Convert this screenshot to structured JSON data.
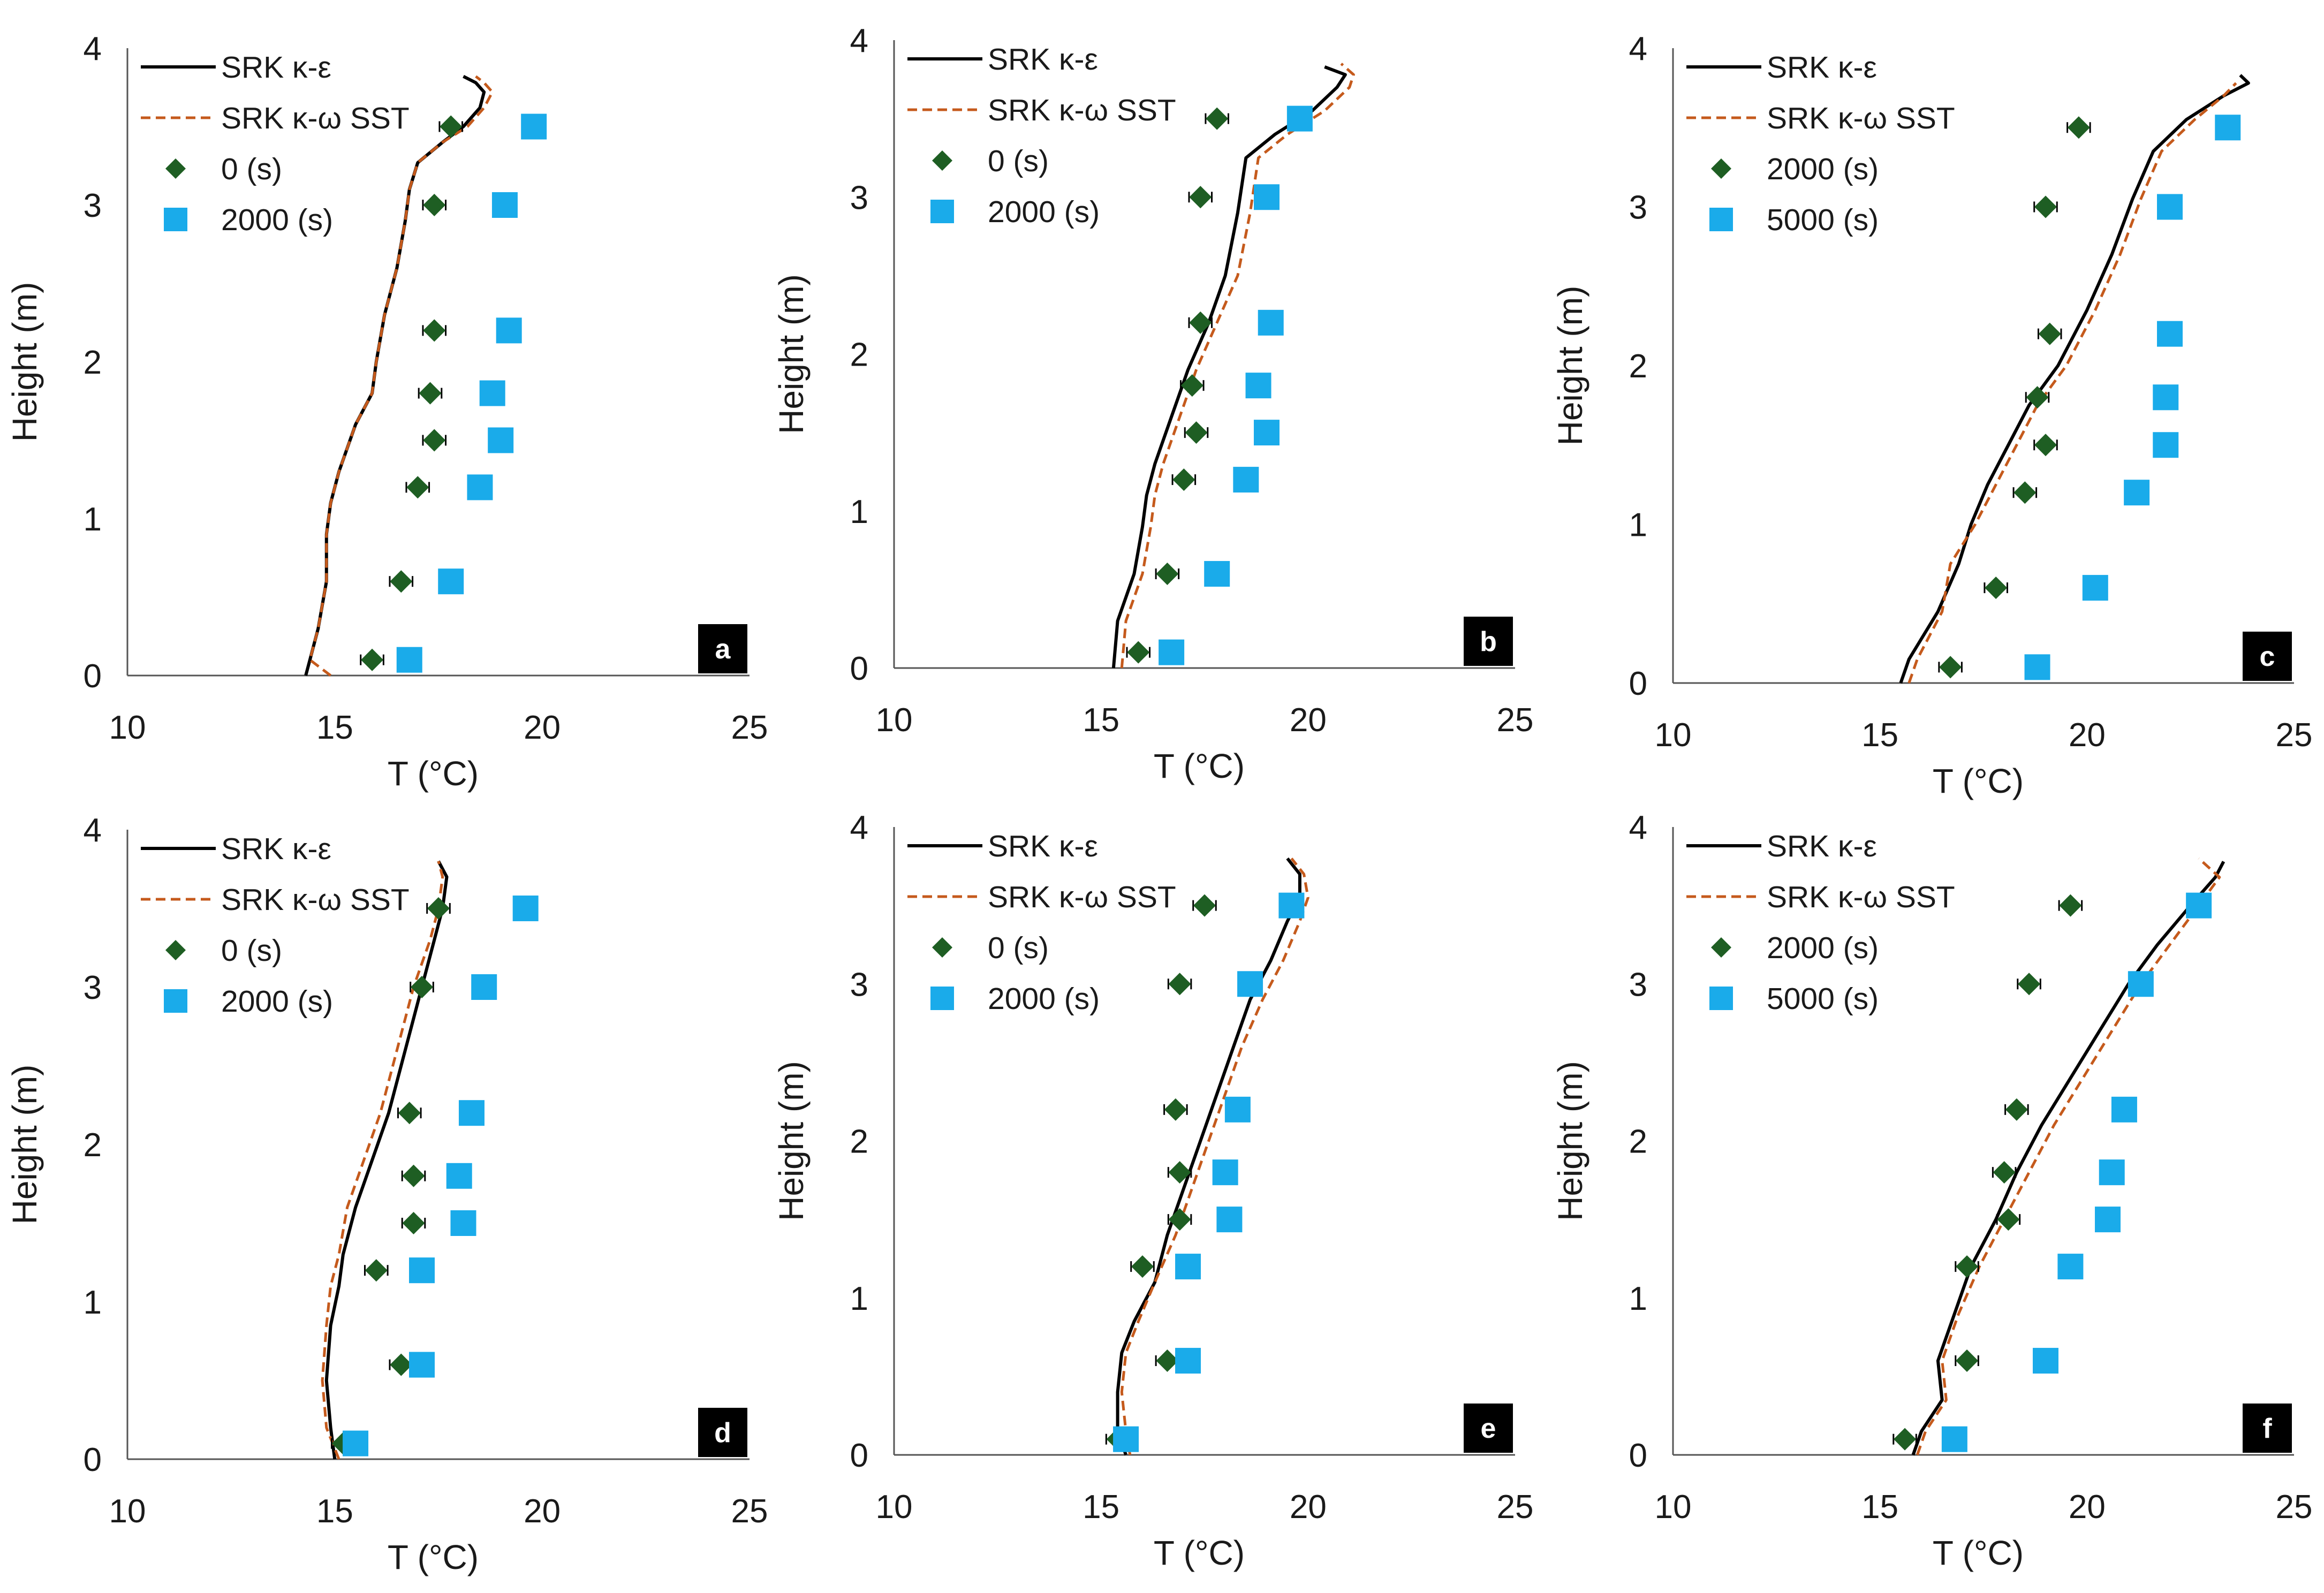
{
  "colors": {
    "ke_line": "#000000",
    "kw_line": "#c55a1c",
    "diamond": "#1e5e23",
    "square": "#1aabea",
    "axis": "#555555",
    "label_box": "#000000",
    "label_text": "#ffffff"
  },
  "chart_data": [
    {
      "type": "line",
      "panel_label": "a",
      "xlabel": "T (°C)",
      "ylabel": "Height (m)",
      "xlim": [
        10,
        25
      ],
      "ylim": [
        0,
        4
      ],
      "xticks": [
        "10",
        "15",
        "20",
        "25"
      ],
      "yticks": [
        "0",
        "1",
        "2",
        "3",
        "4"
      ],
      "legend": [
        "SRK κ-ε",
        "SRK κ-ω SST",
        "0 (s)",
        "2000 (s)"
      ],
      "series": [
        {
          "name": "SRK κ-ε",
          "kind": "line",
          "style": "solid",
          "x": [
            14.3,
            14.4,
            14.6,
            14.8,
            14.8,
            14.9,
            15.1,
            15.5,
            15.9,
            16.0,
            16.2,
            16.5,
            16.7,
            16.8,
            17.0,
            17.6,
            18.1,
            18.5,
            18.6,
            18.4,
            18.1
          ],
          "y": [
            0.0,
            0.1,
            0.3,
            0.6,
            0.9,
            1.1,
            1.3,
            1.6,
            1.8,
            2.0,
            2.3,
            2.6,
            2.9,
            3.1,
            3.27,
            3.4,
            3.5,
            3.62,
            3.72,
            3.78,
            3.82
          ]
        },
        {
          "name": "SRK κ-ω SST",
          "kind": "line",
          "style": "dashed",
          "x": [
            14.9,
            14.4,
            14.6,
            14.8,
            14.8,
            14.9,
            15.1,
            15.5,
            15.9,
            16.0,
            16.2,
            16.5,
            16.7,
            16.8,
            17.0,
            17.6,
            18.2,
            18.6,
            18.8,
            18.6,
            18.4
          ],
          "y": [
            0.0,
            0.1,
            0.3,
            0.6,
            0.9,
            1.1,
            1.3,
            1.6,
            1.8,
            2.0,
            2.3,
            2.6,
            2.9,
            3.1,
            3.27,
            3.4,
            3.5,
            3.62,
            3.72,
            3.78,
            3.82
          ]
        },
        {
          "name": "0 (s)",
          "kind": "diamond",
          "x": [
            15.9,
            16.6,
            17.0,
            17.4,
            17.3,
            17.4,
            17.4,
            17.8
          ],
          "y": [
            0.1,
            0.6,
            1.2,
            1.5,
            1.8,
            2.2,
            3.0,
            3.5
          ]
        },
        {
          "name": "2000 (s)",
          "kind": "square",
          "x": [
            16.8,
            17.8,
            18.5,
            19.0,
            18.8,
            19.2,
            19.1,
            19.8
          ],
          "y": [
            0.1,
            0.6,
            1.2,
            1.5,
            1.8,
            2.2,
            3.0,
            3.5
          ]
        }
      ]
    },
    {
      "type": "line",
      "panel_label": "b",
      "xlabel": "T (°C)",
      "ylabel": "Height (m)",
      "xlim": [
        10,
        25
      ],
      "ylim": [
        0,
        4
      ],
      "xticks": [
        "10",
        "15",
        "20",
        "25"
      ],
      "yticks": [
        "0",
        "1",
        "2",
        "3",
        "4"
      ],
      "legend": [
        "SRK κ-ε",
        "SRK κ-ω SST",
        "0 (s)",
        "2000 (s)"
      ],
      "series": [
        {
          "name": "SRK κ-ε",
          "kind": "line",
          "style": "solid",
          "x": [
            15.3,
            15.4,
            15.8,
            16.0,
            16.1,
            16.3,
            16.7,
            17.1,
            17.6,
            18.0,
            18.3,
            18.5,
            19.2,
            20.1,
            20.7,
            20.9,
            20.4
          ],
          "y": [
            0.0,
            0.3,
            0.6,
            0.9,
            1.1,
            1.3,
            1.6,
            1.9,
            2.2,
            2.5,
            2.9,
            3.25,
            3.4,
            3.55,
            3.7,
            3.78,
            3.83
          ]
        },
        {
          "name": "SRK κ-ω SST",
          "kind": "line",
          "style": "dashed",
          "x": [
            15.5,
            15.6,
            16.0,
            16.2,
            16.3,
            16.5,
            16.9,
            17.3,
            17.8,
            18.3,
            18.6,
            18.8,
            19.5,
            20.4,
            21.0,
            21.1,
            20.8
          ],
          "y": [
            0.0,
            0.3,
            0.6,
            0.9,
            1.1,
            1.3,
            1.6,
            1.9,
            2.2,
            2.5,
            2.9,
            3.25,
            3.4,
            3.55,
            3.7,
            3.78,
            3.85
          ]
        },
        {
          "name": "0 (s)",
          "kind": "diamond",
          "x": [
            15.9,
            16.6,
            17.0,
            17.3,
            17.2,
            17.4,
            17.4,
            17.8
          ],
          "y": [
            0.1,
            0.6,
            1.2,
            1.5,
            1.8,
            2.2,
            3.0,
            3.5
          ]
        },
        {
          "name": "2000 (s)",
          "kind": "square",
          "x": [
            16.7,
            17.8,
            18.5,
            19.0,
            18.8,
            19.1,
            19.0,
            19.8
          ],
          "y": [
            0.1,
            0.6,
            1.2,
            1.5,
            1.8,
            2.2,
            3.0,
            3.5
          ]
        }
      ]
    },
    {
      "type": "line",
      "panel_label": "c",
      "xlabel": "T (°C)",
      "ylabel": "Height (m)",
      "xlim": [
        10,
        25
      ],
      "ylim": [
        0,
        4
      ],
      "xticks": [
        "10",
        "15",
        "20",
        "25"
      ],
      "yticks": [
        "0",
        "1",
        "2",
        "3",
        "4"
      ],
      "legend": [
        "SRK κ-ε",
        "SRK κ-ω SST",
        "2000 (s)",
        "5000 (s)"
      ],
      "series": [
        {
          "name": "SRK κ-ε",
          "kind": "line",
          "style": "solid",
          "x": [
            15.5,
            15.7,
            16.4,
            16.9,
            17.2,
            17.6,
            18.1,
            18.6,
            19.3,
            20.0,
            20.6,
            21.1,
            21.6,
            22.4,
            23.3,
            23.9,
            23.7
          ],
          "y": [
            0.0,
            0.15,
            0.45,
            0.75,
            1.0,
            1.25,
            1.5,
            1.75,
            2.0,
            2.35,
            2.7,
            3.05,
            3.35,
            3.55,
            3.7,
            3.78,
            3.83
          ]
        },
        {
          "name": "SRK κ-ω SST",
          "kind": "line",
          "style": "dashed",
          "x": [
            15.7,
            15.9,
            16.5,
            16.7,
            17.3,
            17.8,
            18.3,
            18.8,
            19.5,
            20.2,
            20.8,
            21.3,
            21.8,
            22.6,
            23.3,
            23.6
          ],
          "y": [
            0.0,
            0.15,
            0.45,
            0.75,
            1.0,
            1.25,
            1.5,
            1.75,
            2.0,
            2.35,
            2.7,
            3.05,
            3.35,
            3.55,
            3.7,
            3.78
          ]
        },
        {
          "name": "2000 (s)",
          "kind": "diamond",
          "x": [
            16.7,
            17.8,
            18.5,
            19.0,
            18.8,
            19.1,
            19.0,
            19.8
          ],
          "y": [
            0.1,
            0.6,
            1.2,
            1.5,
            1.8,
            2.2,
            3.0,
            3.5
          ]
        },
        {
          "name": "5000 (s)",
          "kind": "square",
          "x": [
            18.8,
            20.2,
            21.2,
            21.9,
            21.9,
            22.0,
            22.0,
            23.4
          ],
          "y": [
            0.1,
            0.6,
            1.2,
            1.5,
            1.8,
            2.2,
            3.0,
            3.5
          ]
        }
      ]
    },
    {
      "type": "line",
      "panel_label": "d",
      "xlabel": "T (°C)",
      "ylabel": "Height (m)",
      "xlim": [
        10,
        25
      ],
      "ylim": [
        0,
        4
      ],
      "xticks": [
        "10",
        "15",
        "20",
        "25"
      ],
      "yticks": [
        "0",
        "1",
        "2",
        "3",
        "4"
      ],
      "legend": [
        "SRK κ-ε",
        "SRK κ-ω SST",
        "0 (s)",
        "2000 (s)"
      ],
      "series": [
        {
          "name": "SRK κ-ε",
          "kind": "line",
          "style": "solid",
          "x": [
            15.0,
            14.9,
            14.8,
            14.9,
            15.1,
            15.2,
            15.5,
            15.9,
            16.3,
            16.7,
            17.1,
            17.4,
            17.6,
            17.7,
            17.5
          ],
          "y": [
            0.0,
            0.2,
            0.5,
            0.85,
            1.1,
            1.3,
            1.6,
            1.9,
            2.2,
            2.6,
            3.0,
            3.3,
            3.5,
            3.7,
            3.8
          ]
        },
        {
          "name": "SRK κ-ω SST",
          "kind": "line",
          "style": "dashed",
          "x": [
            15.1,
            14.8,
            14.7,
            14.8,
            14.9,
            15.1,
            15.3,
            15.7,
            16.1,
            16.5,
            16.9,
            17.3,
            17.5,
            17.6,
            17.5
          ],
          "y": [
            0.0,
            0.2,
            0.5,
            0.85,
            1.1,
            1.3,
            1.6,
            1.9,
            2.2,
            2.6,
            3.0,
            3.3,
            3.5,
            3.7,
            3.8
          ]
        },
        {
          "name": "0 (s)",
          "kind": "diamond",
          "x": [
            15.2,
            16.6,
            16.0,
            16.9,
            16.9,
            16.8,
            17.1,
            17.5
          ],
          "y": [
            0.1,
            0.6,
            1.2,
            1.5,
            1.8,
            2.2,
            3.0,
            3.5
          ]
        },
        {
          "name": "2000 (s)",
          "kind": "square",
          "x": [
            15.5,
            17.1,
            17.1,
            18.1,
            18.0,
            18.3,
            18.6,
            19.6
          ],
          "y": [
            0.1,
            0.6,
            1.2,
            1.5,
            1.8,
            2.2,
            3.0,
            3.5
          ]
        }
      ]
    },
    {
      "type": "line",
      "panel_label": "e",
      "xlabel": "T (°C)",
      "ylabel": "Height (m)",
      "xlim": [
        10,
        25
      ],
      "ylim": [
        0,
        4
      ],
      "xticks": [
        "10",
        "15",
        "20",
        "25"
      ],
      "yticks": [
        "0",
        "1",
        "2",
        "3",
        "4"
      ],
      "legend": [
        "SRK κ-ε",
        "SRK κ-ω SST",
        "0 (s)",
        "2000 (s)"
      ],
      "series": [
        {
          "name": "SRK κ-ε",
          "kind": "line",
          "style": "solid",
          "x": [
            15.6,
            15.4,
            15.4,
            15.5,
            15.8,
            16.3,
            16.6,
            17.0,
            17.4,
            17.8,
            18.2,
            18.6,
            19.1,
            19.5,
            19.8,
            19.8,
            19.5
          ],
          "y": [
            0.0,
            0.15,
            0.4,
            0.65,
            0.85,
            1.1,
            1.4,
            1.7,
            2.0,
            2.3,
            2.6,
            2.9,
            3.15,
            3.4,
            3.55,
            3.7,
            3.8
          ]
        },
        {
          "name": "SRK κ-ω SST",
          "kind": "line",
          "style": "dashed",
          "x": [
            15.7,
            15.6,
            15.5,
            15.6,
            15.9,
            16.3,
            16.8,
            17.2,
            17.6,
            18.0,
            18.4,
            18.9,
            19.4,
            19.8,
            20.0,
            19.9,
            19.6
          ],
          "y": [
            0.0,
            0.15,
            0.4,
            0.65,
            0.85,
            1.1,
            1.4,
            1.7,
            2.0,
            2.3,
            2.6,
            2.9,
            3.15,
            3.4,
            3.55,
            3.7,
            3.8
          ]
        },
        {
          "name": "0 (s)",
          "kind": "diamond",
          "x": [
            15.4,
            16.6,
            16.0,
            16.9,
            16.9,
            16.8,
            16.9,
            17.5
          ],
          "y": [
            0.1,
            0.6,
            1.2,
            1.5,
            1.8,
            2.2,
            3.0,
            3.5
          ]
        },
        {
          "name": "2000 (s)",
          "kind": "square",
          "x": [
            15.6,
            17.1,
            17.1,
            18.1,
            18.0,
            18.3,
            18.6,
            19.6
          ],
          "y": [
            0.1,
            0.6,
            1.2,
            1.5,
            1.8,
            2.2,
            3.0,
            3.5
          ]
        }
      ]
    },
    {
      "type": "line",
      "panel_label": "f",
      "xlabel": "T (°C)",
      "ylabel": "Height (m)",
      "xlim": [
        10,
        25
      ],
      "ylim": [
        0,
        4
      ],
      "xticks": [
        "10",
        "15",
        "20",
        "25"
      ],
      "yticks": [
        "0",
        "1",
        "2",
        "3",
        "4"
      ],
      "legend": [
        "SRK κ-ε",
        "SRK κ-ω SST",
        "2000 (s)",
        "5000 (s)"
      ],
      "series": [
        {
          "name": "SRK κ-ε",
          "kind": "line",
          "style": "solid",
          "x": [
            15.8,
            16.0,
            16.5,
            16.4,
            16.8,
            17.2,
            17.8,
            18.3,
            18.9,
            19.6,
            20.3,
            21.0,
            21.7,
            22.5,
            23.1,
            23.3
          ],
          "y": [
            0.0,
            0.15,
            0.35,
            0.6,
            0.9,
            1.2,
            1.5,
            1.8,
            2.1,
            2.4,
            2.7,
            3.0,
            3.25,
            3.5,
            3.68,
            3.78
          ]
        },
        {
          "name": "SRK κ-ω SST",
          "kind": "line",
          "style": "dashed",
          "x": [
            15.9,
            16.1,
            16.6,
            16.5,
            16.9,
            17.4,
            18.0,
            18.6,
            19.2,
            19.9,
            20.6,
            21.3,
            22.0,
            22.7,
            23.2,
            22.7
          ],
          "y": [
            0.0,
            0.15,
            0.35,
            0.6,
            0.9,
            1.2,
            1.5,
            1.8,
            2.1,
            2.4,
            2.7,
            3.0,
            3.25,
            3.5,
            3.68,
            3.8
          ]
        },
        {
          "name": "2000 (s)",
          "kind": "diamond",
          "x": [
            15.6,
            17.1,
            17.1,
            18.1,
            18.0,
            18.3,
            18.6,
            19.6
          ],
          "y": [
            0.1,
            0.6,
            1.2,
            1.5,
            1.8,
            2.2,
            3.0,
            3.5
          ]
        },
        {
          "name": "5000 (s)",
          "kind": "square",
          "x": [
            16.8,
            19.0,
            19.6,
            20.5,
            20.6,
            20.9,
            21.3,
            22.7
          ],
          "y": [
            0.1,
            0.6,
            1.2,
            1.5,
            1.8,
            2.2,
            3.0,
            3.5
          ]
        }
      ]
    }
  ]
}
